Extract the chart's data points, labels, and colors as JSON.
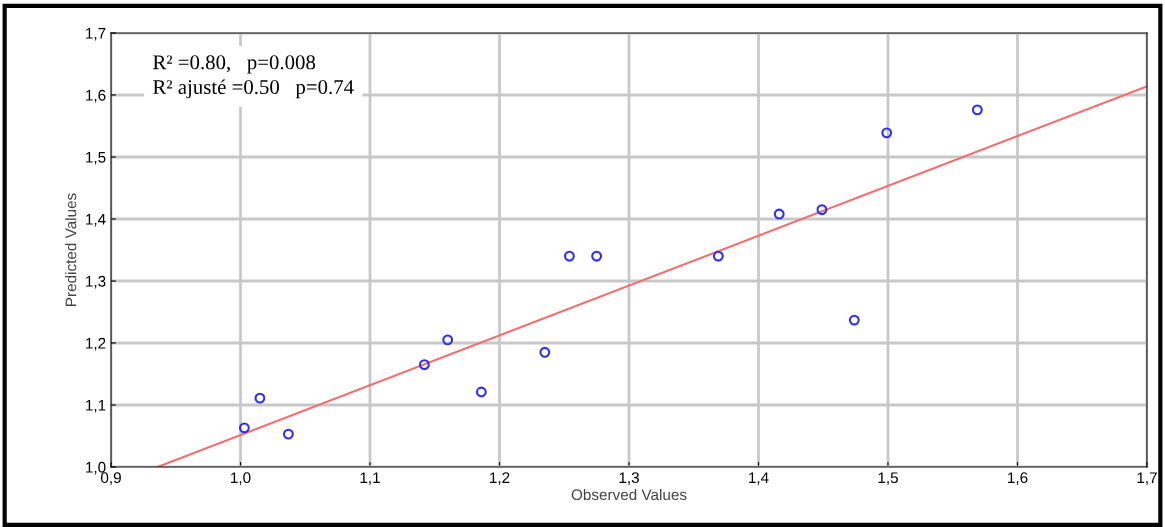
{
  "chart_data": {
    "type": "scatter",
    "xlabel": "Observed Values",
    "ylabel": "Predicted Values",
    "annotations": [
      "R² =0.80,   p=0.008",
      "R² ajusté =0.50   p=0.74"
    ],
    "series": [
      {
        "color": "#3030f0",
        "marker": "circle",
        "x": [
          1.003,
          1.015,
          1.037,
          1.142,
          1.16,
          1.186,
          1.235,
          1.254,
          1.275,
          1.369,
          1.416,
          1.449,
          1.474,
          1.499,
          1.569
        ],
        "values": [
          1.063,
          1.111,
          1.053,
          1.165,
          1.205,
          1.121,
          1.185,
          1.34,
          1.34,
          1.34,
          1.408,
          1.415,
          1.237,
          1.539,
          1.576
        ]
      },
      {
        "type": "line",
        "color": "#f07070",
        "marker": "none",
        "x": [
          0.936,
          1.7
        ],
        "values": [
          1.0,
          1.614
        ]
      }
    ],
    "xlim": [
      0.9,
      1.7
    ],
    "ylim": [
      1.0,
      1.7
    ],
    "xticks": [
      {
        "value": 0.9,
        "label": "0,9"
      },
      {
        "value": 1.0,
        "label": "1,0"
      },
      {
        "value": 1.1,
        "label": "1,1"
      },
      {
        "value": 1.2,
        "label": "1,2"
      },
      {
        "value": 1.3,
        "label": "1,3"
      },
      {
        "value": 1.4,
        "label": "1,4"
      },
      {
        "value": 1.5,
        "label": "1,5"
      },
      {
        "value": 1.6,
        "label": "1,6"
      },
      {
        "value": 1.7,
        "label": "1,7"
      }
    ],
    "yticks": [
      {
        "value": 1.0,
        "label": "1,0"
      },
      {
        "value": 1.1,
        "label": "1,1"
      },
      {
        "value": 1.2,
        "label": "1,2"
      },
      {
        "value": 1.3,
        "label": "1,3"
      },
      {
        "value": 1.4,
        "label": "1,4"
      },
      {
        "value": 1.5,
        "label": "1,5"
      },
      {
        "value": 1.6,
        "label": "1,6"
      },
      {
        "value": 1.7,
        "label": "1,7"
      }
    ],
    "grid": true
  }
}
